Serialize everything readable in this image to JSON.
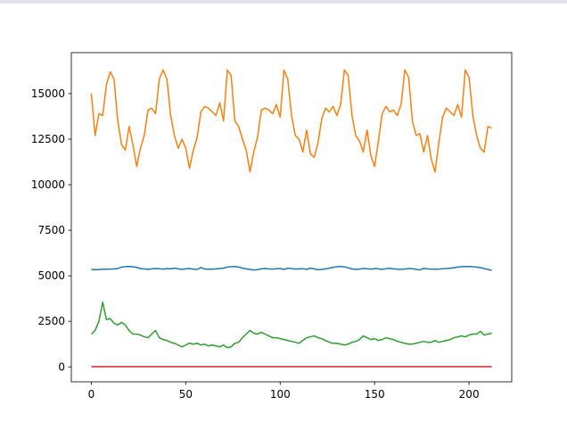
{
  "chart_data": {
    "type": "line",
    "x": [
      0,
      2,
      4,
      6,
      8,
      10,
      12,
      14,
      16,
      18,
      20,
      22,
      24,
      26,
      28,
      30,
      32,
      34,
      36,
      38,
      40,
      42,
      44,
      46,
      48,
      50,
      52,
      54,
      56,
      58,
      60,
      62,
      64,
      66,
      68,
      70,
      72,
      74,
      76,
      78,
      80,
      82,
      84,
      86,
      88,
      90,
      92,
      94,
      96,
      98,
      100,
      102,
      104,
      106,
      108,
      110,
      112,
      114,
      116,
      118,
      120,
      122,
      124,
      126,
      128,
      130,
      132,
      134,
      136,
      138,
      140,
      142,
      144,
      146,
      148,
      150,
      152,
      154,
      156,
      158,
      160,
      162,
      164,
      166,
      168,
      170,
      172,
      174,
      176,
      178,
      180,
      182,
      184,
      186,
      188,
      190,
      192,
      194,
      196,
      198,
      200,
      202,
      204,
      206,
      208,
      210,
      212
    ],
    "series": [
      {
        "color": "#1f77b4",
        "values": [
          5350,
          5340,
          5340,
          5360,
          5360,
          5370,
          5380,
          5400,
          5480,
          5500,
          5510,
          5500,
          5460,
          5400,
          5380,
          5350,
          5380,
          5400,
          5390,
          5360,
          5400,
          5380,
          5420,
          5380,
          5350,
          5380,
          5400,
          5360,
          5350,
          5450,
          5370,
          5360,
          5360,
          5380,
          5400,
          5420,
          5480,
          5500,
          5510,
          5480,
          5420,
          5380,
          5350,
          5320,
          5340,
          5380,
          5400,
          5380,
          5360,
          5390,
          5400,
          5350,
          5420,
          5400,
          5370,
          5380,
          5390,
          5350,
          5420,
          5380,
          5330,
          5350,
          5380,
          5420,
          5460,
          5500,
          5510,
          5490,
          5440,
          5380,
          5350,
          5370,
          5400,
          5390,
          5360,
          5400,
          5380,
          5350,
          5390,
          5410,
          5380,
          5360,
          5350,
          5370,
          5400,
          5390,
          5350,
          5320,
          5410,
          5380,
          5370,
          5360,
          5370,
          5390,
          5400,
          5420,
          5440,
          5480,
          5500,
          5510,
          5510,
          5500,
          5480,
          5450,
          5400,
          5350,
          5300
        ]
      },
      {
        "color": "#ff7f0e",
        "values": [
          15000,
          12700,
          13900,
          13800,
          15500,
          16200,
          15800,
          13500,
          12200,
          11900,
          13200,
          12200,
          11000,
          12000,
          12700,
          14100,
          14200,
          13900,
          15800,
          16300,
          15800,
          13800,
          12700,
          12000,
          12500,
          12000,
          10900,
          11900,
          12600,
          14000,
          14300,
          14200,
          14000,
          13800,
          14500,
          13500,
          16300,
          16000,
          13500,
          13200,
          12500,
          11900,
          10700,
          11800,
          12600,
          14100,
          14200,
          14100,
          13900,
          14400,
          13700,
          16300,
          15800,
          13800,
          12700,
          12500,
          11800,
          13000,
          11700,
          11500,
          12300,
          13600,
          14200,
          14000,
          14300,
          13800,
          14400,
          16300,
          16000,
          13800,
          12700,
          12400,
          11800,
          13000,
          11600,
          11000,
          12400,
          13900,
          14300,
          14000,
          14100,
          13800,
          14400,
          16300,
          15900,
          13500,
          12700,
          12800,
          11800,
          12700,
          11400,
          10700,
          12300,
          13700,
          14200,
          14000,
          13800,
          14400,
          13700,
          16300,
          15900,
          13800,
          12700,
          12000,
          11800,
          13200,
          13100
        ]
      },
      {
        "color": "#2ca02c",
        "values": [
          1800,
          2000,
          2500,
          3550,
          2600,
          2650,
          2400,
          2300,
          2450,
          2300,
          2000,
          1800,
          1800,
          1750,
          1650,
          1600,
          1800,
          2000,
          1600,
          1500,
          1450,
          1350,
          1300,
          1200,
          1100,
          1200,
          1300,
          1250,
          1300,
          1200,
          1250,
          1150,
          1200,
          1150,
          1100,
          1200,
          1050,
          1100,
          1300,
          1350,
          1600,
          1800,
          2000,
          1850,
          1800,
          1900,
          1800,
          1700,
          1600,
          1600,
          1550,
          1500,
          1450,
          1400,
          1350,
          1300,
          1450,
          1600,
          1650,
          1700,
          1600,
          1550,
          1450,
          1350,
          1300,
          1300,
          1250,
          1200,
          1250,
          1350,
          1400,
          1500,
          1700,
          1600,
          1500,
          1550,
          1450,
          1500,
          1600,
          1550,
          1500,
          1400,
          1350,
          1300,
          1250,
          1250,
          1300,
          1350,
          1400,
          1350,
          1350,
          1450,
          1350,
          1400,
          1450,
          1500,
          1600,
          1650,
          1700,
          1650,
          1750,
          1800,
          1800,
          1950,
          1750,
          1800,
          1850
        ]
      },
      {
        "color": "#d62728",
        "values": [
          10,
          10,
          10,
          10,
          10,
          10,
          10,
          10,
          10,
          10,
          10,
          10,
          10,
          10,
          10,
          10,
          10,
          10,
          10,
          10,
          10,
          10,
          10,
          10,
          10,
          10,
          10,
          10,
          10,
          10,
          10,
          10,
          10,
          10,
          10,
          10,
          10,
          10,
          10,
          10,
          10,
          10,
          10,
          10,
          10,
          10,
          10,
          10,
          10,
          10,
          10,
          10,
          10,
          10,
          10,
          10,
          10,
          10,
          10,
          10,
          10,
          10,
          10,
          10,
          10,
          10,
          10,
          10,
          10,
          10,
          10,
          10,
          10,
          10,
          10,
          10,
          10,
          10,
          10,
          10,
          10,
          10,
          10,
          10,
          10,
          10,
          10,
          10,
          10,
          10,
          10,
          10,
          10,
          10,
          10,
          10,
          10,
          10,
          10,
          10,
          10,
          10,
          10,
          10,
          10,
          10,
          10
        ]
      }
    ],
    "xlim": [
      -10.6,
      222.6
    ],
    "xticks": [
      0,
      50,
      100,
      150,
      200
    ],
    "ylim": [
      -820,
      17250
    ],
    "yticks": [
      0,
      2500,
      5000,
      7500,
      10000,
      12500,
      15000
    ]
  }
}
